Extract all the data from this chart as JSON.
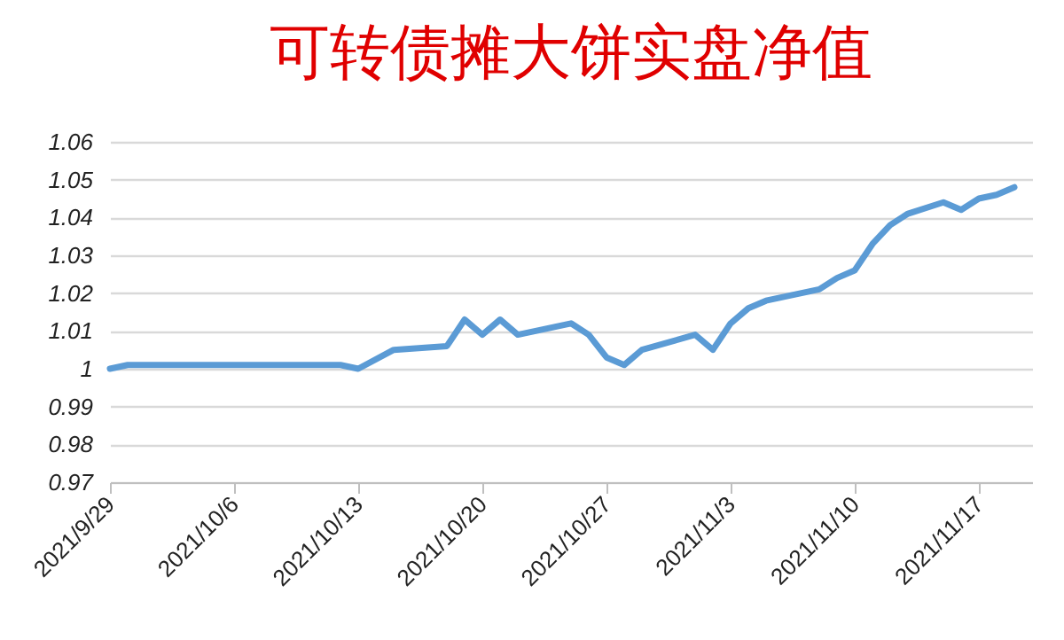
{
  "chart_data": {
    "type": "line",
    "title": "可转债摊大饼实盘净值",
    "x": [
      "2021-09-29",
      "2021-09-30",
      "2021-10-08",
      "2021-10-12",
      "2021-10-13",
      "2021-10-15",
      "2021-10-18",
      "2021-10-19",
      "2021-10-20",
      "2021-10-21",
      "2021-10-22",
      "2021-10-25",
      "2021-10-26",
      "2021-10-27",
      "2021-10-28",
      "2021-10-29",
      "2021-11-01",
      "2021-11-02",
      "2021-11-03",
      "2021-11-04",
      "2021-11-05",
      "2021-11-08",
      "2021-11-09",
      "2021-11-10",
      "2021-11-11",
      "2021-11-12",
      "2021-11-13",
      "2021-11-15",
      "2021-11-16",
      "2021-11-17",
      "2021-11-18",
      "2021-11-19"
    ],
    "series": [
      {
        "color": "#5b9bd5",
        "values": [
          1.0,
          1.001,
          1.001,
          1.001,
          1.0,
          1.005,
          1.006,
          1.013,
          1.009,
          1.013,
          1.009,
          1.012,
          1.009,
          1.003,
          1.001,
          1.005,
          1.009,
          1.005,
          1.012,
          1.016,
          1.018,
          1.021,
          1.024,
          1.026,
          1.033,
          1.038,
          1.041,
          1.044,
          1.042,
          1.045,
          1.046,
          1.048
        ]
      }
    ],
    "xlim": [
      "2021-09-29",
      "2021-11-20"
    ],
    "xticks": [
      {
        "value": "2021-09-29",
        "label": "2021/9/29"
      },
      {
        "value": "2021-10-06",
        "label": "2021/10/6"
      },
      {
        "value": "2021-10-13",
        "label": "2021/10/13"
      },
      {
        "value": "2021-10-20",
        "label": "2021/10/20"
      },
      {
        "value": "2021-10-27",
        "label": "2021/10/27"
      },
      {
        "value": "2021-11-03",
        "label": "2021/11/3"
      },
      {
        "value": "2021-11-10",
        "label": "2021/11/10"
      },
      {
        "value": "2021-11-17",
        "label": "2021/11/17"
      }
    ],
    "ylim": [
      0.97,
      1.06
    ],
    "yticks": [
      0.97,
      0.98,
      0.99,
      1,
      1.01,
      1.02,
      1.03,
      1.04,
      1.05,
      1.06
    ],
    "grid": "y",
    "marker": "none",
    "line_style": "solid"
  }
}
